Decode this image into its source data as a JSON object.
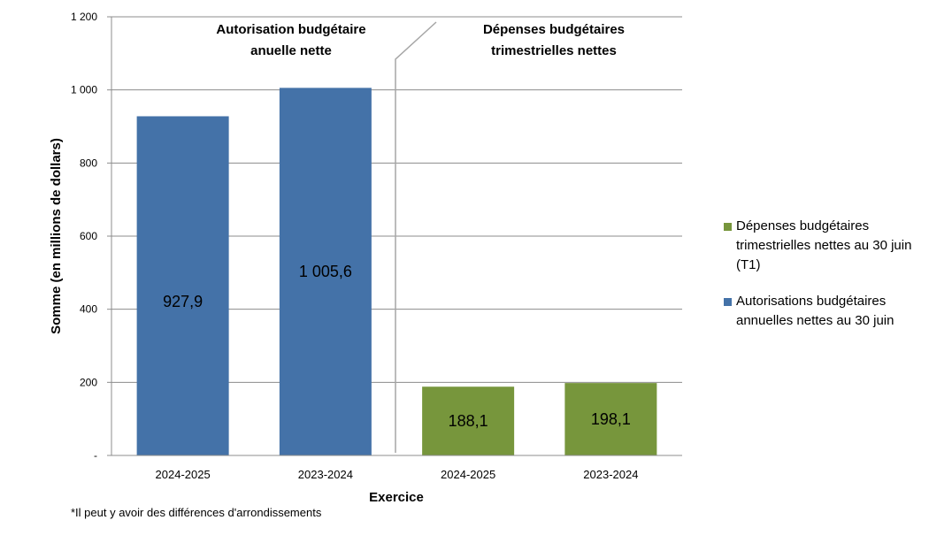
{
  "chart_data": {
    "type": "bar",
    "categories": [
      "2024-2025",
      "2023-2024",
      "2024-2025",
      "2023-2024"
    ],
    "series": [
      {
        "name": "Autorisations budgétaires annuelles nettes au 30 juin",
        "color": "#4472a8",
        "values": [
          927.9,
          1005.6,
          null,
          null
        ],
        "labels": [
          "927,9",
          "1 005,6",
          "",
          ""
        ]
      },
      {
        "name": "Dépenses budgétaires trimestrielles nettes au 30 juin (T1)",
        "color": "#77963c",
        "values": [
          null,
          null,
          188.1,
          198.1
        ],
        "labels": [
          "",
          "",
          "188,1",
          "198,1"
        ]
      }
    ],
    "xlabel": "Exercice",
    "ylabel": "Somme (en millions de dollars)",
    "ylim": [
      0,
      1200
    ],
    "yticks": [
      0,
      200,
      400,
      600,
      800,
      1000,
      1200
    ],
    "ytick_labels": [
      "-",
      "200",
      "400",
      "600",
      "800",
      "1 000",
      "1 200"
    ],
    "grid": true,
    "legend_position": "right",
    "section_titles": [
      [
        "Autorisation budgétaire",
        "anuelle nette"
      ],
      [
        "Dépenses budgétaires",
        "trimestrielles nettes"
      ]
    ]
  },
  "legend": [
    {
      "label": "Dépenses budgétaires trimestrielles nettes au 30 juin (T1)",
      "color": "#77963c"
    },
    {
      "label": "Autorisations budgétaires annuelles nettes au 30 juin",
      "color": "#4472a8"
    }
  ],
  "footnote": "*Il peut y avoir des différences d'arrondissements"
}
